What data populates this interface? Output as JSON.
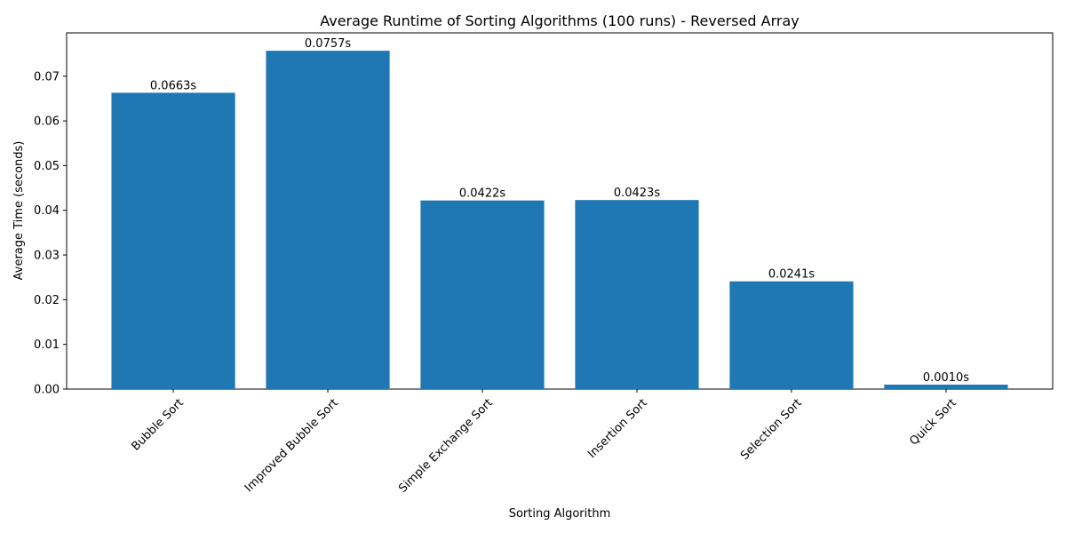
{
  "chart_data": {
    "type": "bar",
    "title": "Average Runtime of Sorting Algorithms (100 runs) - Reversed Array",
    "x_label": "Sorting Algorithm",
    "y_label": "Average Time (seconds)",
    "categories": [
      "Bubble Sort",
      "Improved Bubble Sort",
      "Simple Exchange Sort",
      "Insertion Sort",
      "Selection Sort",
      "Quick Sort"
    ],
    "values": [
      0.0663,
      0.0757,
      0.0422,
      0.0423,
      0.0241,
      0.001
    ],
    "value_labels": [
      "0.0663s",
      "0.0757s",
      "0.0422s",
      "0.0423s",
      "0.0241s",
      "0.0010s"
    ],
    "color": "#1f77b4",
    "ylim": [
      0,
      0.0797
    ],
    "yticks": [
      {
        "value": 0,
        "label": "0.00"
      },
      0.01,
      0.02,
      0.03,
      0.04,
      0.05,
      0.06,
      0.07
    ],
    "grid": false
  }
}
